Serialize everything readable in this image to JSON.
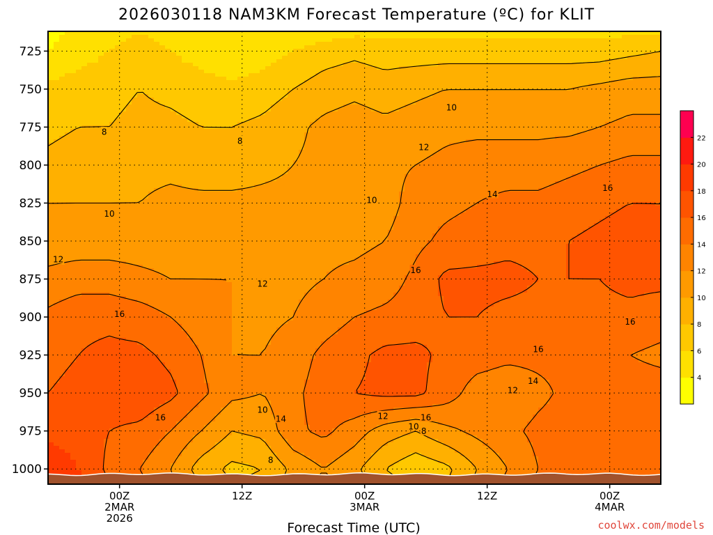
{
  "title": "2026030118 NAM3KM Forecast Temperature (ºC) for KLIT",
  "xlabel": "Forecast Time (UTC)",
  "credit": "coolwx.com/models",
  "chart_data": {
    "type": "heatmap",
    "title": "2026030118 NAM3KM Forecast Temperature (ºC) for KLIT",
    "xlabel": "Forecast Time (UTC)",
    "ylabel": "",
    "y_axis": "pressure (hPa), inverted",
    "ylim": [
      1010,
      712
    ],
    "yticks": [
      "725",
      "750",
      "775",
      "800",
      "825",
      "850",
      "875",
      "900",
      "925",
      "950",
      "975",
      "1000"
    ],
    "x_axis": "forecast hour since 2026-03-01 18Z",
    "xlim": [
      -1,
      59
    ],
    "xticks": [
      {
        "hour": 6,
        "lines": [
          "00Z",
          "2MAR",
          "2026"
        ]
      },
      {
        "hour": 18,
        "lines": [
          "12Z"
        ]
      },
      {
        "hour": 30,
        "lines": [
          "00Z",
          "3MAR"
        ]
      },
      {
        "hour": 42,
        "lines": [
          "12Z"
        ]
      },
      {
        "hour": 54,
        "lines": [
          "00Z",
          "4MAR"
        ]
      }
    ],
    "grid": true,
    "colorbar": {
      "levels": [
        2,
        4,
        6,
        8,
        10,
        12,
        14,
        16,
        18,
        20,
        22,
        24
      ],
      "labels": [
        "4",
        "6",
        "8",
        "10",
        "12",
        "14",
        "16",
        "18",
        "20",
        "22"
      ],
      "colors": [
        "#ffff00",
        "#ffe000",
        "#ffc800",
        "#ffb000",
        "#ff9a00",
        "#ff8400",
        "#ff6c00",
        "#ff5400",
        "#ff3a00",
        "#ff1a10",
        "#ff0050"
      ]
    },
    "contour_levels": [
      8,
      10,
      12,
      14,
      16
    ],
    "contour_labels": [
      {
        "text": "8",
        "hour": 4.5,
        "p": 778
      },
      {
        "text": "8",
        "hour": 17.8,
        "p": 784
      },
      {
        "text": "10",
        "hour": 38.5,
        "p": 762
      },
      {
        "text": "12",
        "hour": 35.8,
        "p": 788
      },
      {
        "text": "14",
        "hour": 42.5,
        "p": 819
      },
      {
        "text": "16",
        "hour": 53.8,
        "p": 815
      },
      {
        "text": "10",
        "hour": 30.7,
        "p": 823
      },
      {
        "text": "10",
        "hour": 5.0,
        "p": 832
      },
      {
        "text": "12",
        "hour": 0.0,
        "p": 862
      },
      {
        "text": "12",
        "hour": 20.0,
        "p": 878
      },
      {
        "text": "16",
        "hour": 35.0,
        "p": 869
      },
      {
        "text": "16",
        "hour": 6.0,
        "p": 898
      },
      {
        "text": "16",
        "hour": 56.0,
        "p": 903
      },
      {
        "text": "16",
        "hour": 47.0,
        "p": 921
      },
      {
        "text": "14",
        "hour": 46.5,
        "p": 942
      },
      {
        "text": "12",
        "hour": 44.5,
        "p": 948
      },
      {
        "text": "16",
        "hour": 10.0,
        "p": 966
      },
      {
        "text": "10",
        "hour": 20.0,
        "p": 961
      },
      {
        "text": "14",
        "hour": 21.8,
        "p": 967
      },
      {
        "text": "12",
        "hour": 31.8,
        "p": 965
      },
      {
        "text": "16",
        "hour": 36.0,
        "p": 966
      },
      {
        "text": "10",
        "hour": 34.8,
        "p": 972
      },
      {
        "text": "8",
        "hour": 35.8,
        "p": 975
      },
      {
        "text": "8",
        "hour": 20.8,
        "p": 994
      }
    ],
    "temperature_field": {
      "hours": [
        -1,
        2,
        5,
        8,
        11,
        14,
        17,
        20,
        23,
        26,
        29,
        32,
        35,
        38,
        41,
        44,
        47,
        50,
        53,
        56,
        59
      ],
      "pressures": [
        712,
        725,
        750,
        775,
        800,
        825,
        850,
        875,
        900,
        925,
        950,
        975,
        1000,
        1010
      ],
      "values": [
        [
          3.5,
          4.5,
          5.5,
          6.0,
          5.5,
          4.5,
          4.0,
          4.0,
          4.5,
          5.0,
          5.5,
          5.5,
          5.5,
          5.5,
          5.5,
          5.5,
          5.5,
          5.5,
          5.5,
          5.5,
          5.5
        ],
        [
          4.0,
          5.0,
          6.0,
          6.5,
          6.0,
          5.0,
          4.5,
          5.0,
          6.0,
          7.0,
          7.5,
          7.0,
          7.0,
          7.0,
          7.0,
          7.0,
          7.0,
          7.0,
          7.0,
          7.5,
          8.0
        ],
        [
          6.5,
          7.0,
          7.5,
          8.0,
          7.5,
          7.0,
          6.5,
          7.0,
          8.0,
          9.0,
          9.5,
          9.0,
          9.5,
          10.0,
          10.0,
          10.0,
          10.0,
          10.0,
          10.5,
          11.0,
          11.0
        ],
        [
          7.5,
          8.0,
          8.0,
          8.5,
          8.5,
          8.0,
          8.0,
          8.5,
          9.5,
          10.5,
          11.0,
          10.5,
          11.0,
          11.5,
          11.5,
          11.5,
          11.5,
          11.5,
          12.0,
          12.5,
          12.5
        ],
        [
          8.5,
          9.0,
          9.0,
          9.5,
          9.5,
          9.0,
          9.0,
          9.5,
          10.0,
          10.5,
          10.8,
          11.5,
          12.0,
          12.5,
          13.0,
          13.0,
          13.0,
          13.5,
          14.0,
          14.5,
          14.5
        ],
        [
          10.0,
          10.0,
          10.0,
          10.0,
          10.5,
          10.5,
          10.5,
          10.5,
          10.5,
          10.5,
          10.5,
          11.0,
          13.0,
          13.5,
          14.0,
          14.5,
          14.5,
          15.0,
          15.5,
          16.0,
          16.0
        ],
        [
          11.0,
          11.0,
          11.0,
          11.0,
          11.0,
          11.0,
          11.0,
          11.5,
          11.5,
          11.5,
          11.5,
          12.0,
          13.5,
          14.5,
          15.0,
          15.5,
          15.5,
          16.0,
          16.5,
          17.0,
          16.5
        ],
        [
          12.5,
          13.0,
          13.0,
          12.5,
          12.0,
          12.0,
          12.0,
          11.5,
          11.5,
          12.0,
          12.5,
          13.0,
          14.5,
          16.5,
          16.5,
          16.5,
          16.0,
          16.0,
          16.0,
          16.5,
          16.5
        ],
        [
          14.5,
          15.5,
          15.5,
          15.0,
          14.0,
          13.0,
          12.0,
          11.5,
          12.0,
          13.0,
          14.0,
          14.5,
          15.0,
          16.0,
          16.0,
          15.5,
          15.5,
          15.5,
          15.5,
          15.5,
          15.0
        ],
        [
          15.5,
          16.0,
          16.5,
          16.5,
          15.5,
          14.0,
          12.0,
          12.0,
          13.0,
          14.5,
          15.5,
          16.5,
          16.5,
          15.5,
          15.0,
          14.5,
          14.5,
          14.5,
          14.5,
          14.0,
          13.5
        ],
        [
          16.0,
          16.5,
          17.0,
          17.5,
          16.5,
          14.5,
          12.5,
          12.0,
          13.5,
          15.0,
          16.0,
          16.5,
          16.5,
          15.0,
          13.0,
          12.5,
          13.5,
          14.5,
          15.0,
          15.0,
          15.0
        ],
        [
          17.5,
          17.0,
          16.0,
          15.5,
          14.0,
          12.0,
          10.0,
          10.5,
          13.5,
          14.5,
          13.0,
          11.0,
          10.0,
          11.5,
          12.5,
          13.5,
          14.5,
          15.0,
          15.0,
          15.0,
          15.0
        ],
        [
          19.5,
          18.0,
          15.5,
          14.0,
          12.0,
          9.0,
          7.5,
          8.0,
          10.5,
          12.0,
          10.5,
          8.0,
          6.5,
          7.5,
          10.0,
          12.0,
          14.0,
          15.0,
          15.0,
          15.0,
          15.0
        ],
        [
          21.0,
          19.0,
          16.0,
          14.5,
          12.5,
          10.0,
          8.0,
          8.5,
          11.0,
          12.5,
          11.0,
          9.0,
          7.5,
          8.0,
          10.5,
          12.5,
          14.5,
          15.5,
          15.5,
          15.5,
          15.5
        ]
      ]
    }
  }
}
